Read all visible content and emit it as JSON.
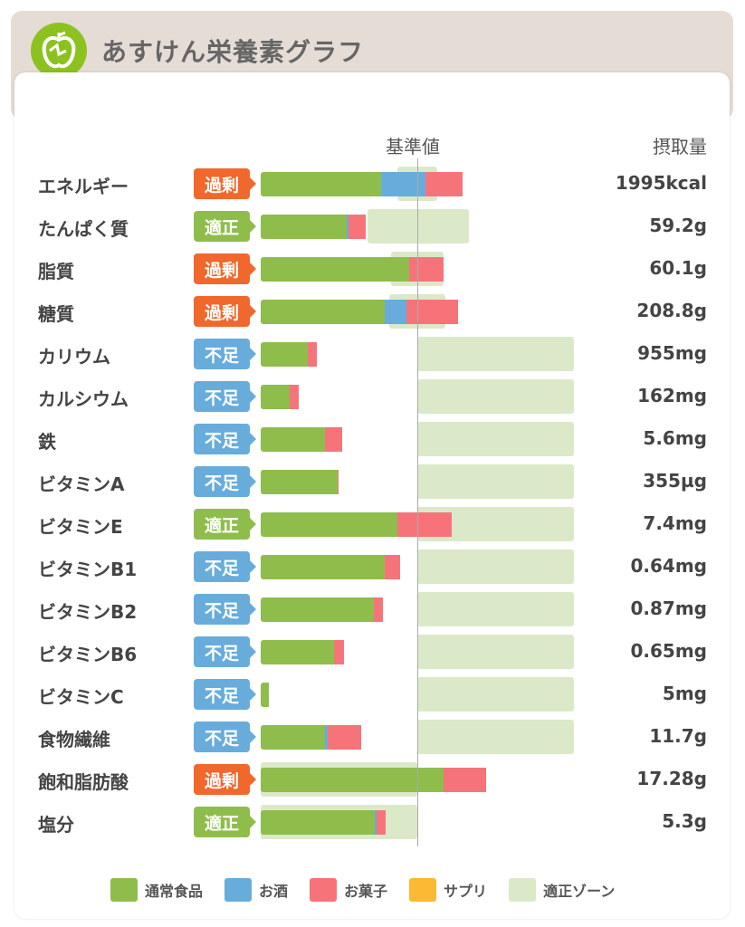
{
  "header": {
    "title": "あすけん栄養素グラフ"
  },
  "columns": {
    "reference": "基準値",
    "intake": "摂取量"
  },
  "colors": {
    "food": "#8fbd4c",
    "alcohol": "#68acdc",
    "sweets": "#f7737a",
    "supplement": "#fbb934",
    "zone": "#dbe9c9",
    "excess": "#f0682c",
    "ok": "#8fbd4c",
    "short": "#68acdc"
  },
  "legend": [
    "通常食品",
    "お酒",
    "お菓子",
    "サプリ",
    "適正ゾーン"
  ],
  "chart_data": {
    "type": "bar",
    "unit": "percent of reference",
    "rows": [
      {
        "name": "エネルギー",
        "status": "過剰",
        "kind": "excess",
        "value": "1995kcal",
        "food": 77,
        "alcohol": 28,
        "sweets": 24,
        "zone": [
          87,
          113
        ]
      },
      {
        "name": "たんぱく質",
        "status": "適正",
        "kind": "ok",
        "value": "59.2g",
        "food": 55,
        "alcohol": 1,
        "sweets": 11,
        "zone": [
          68,
          133
        ]
      },
      {
        "name": "脂質",
        "status": "過剰",
        "kind": "excess",
        "value": "60.1g",
        "food": 95,
        "alcohol": 0,
        "sweets": 22,
        "zone": [
          83,
          117
        ]
      },
      {
        "name": "糖質",
        "status": "過剰",
        "kind": "excess",
        "value": "208.8g",
        "food": 79,
        "alcohol": 14,
        "sweets": 33,
        "zone": [
          82,
          118
        ]
      },
      {
        "name": "カリウム",
        "status": "不足",
        "kind": "short",
        "value": "955mg",
        "food": 30,
        "alcohol": 0,
        "sweets": 6,
        "zone": [
          100,
          200
        ]
      },
      {
        "name": "カルシウム",
        "status": "不足",
        "kind": "short",
        "value": "162mg",
        "food": 18.5,
        "alcohol": 0,
        "sweets": 6,
        "zone": [
          100,
          200
        ]
      },
      {
        "name": "鉄",
        "status": "不足",
        "kind": "short",
        "value": "5.6mg",
        "food": 41,
        "alcohol": 0,
        "sweets": 11,
        "zone": [
          100,
          200
        ]
      },
      {
        "name": "ビタミンA",
        "status": "不足",
        "kind": "short",
        "value": "355µg",
        "food": 49,
        "alcohol": 0,
        "sweets": 1,
        "zone": [
          100,
          200
        ]
      },
      {
        "name": "ビタミンE",
        "status": "適正",
        "kind": "ok",
        "value": "7.4mg",
        "food": 87,
        "alcohol": 0,
        "sweets": 35,
        "zone": [
          100,
          200
        ]
      },
      {
        "name": "ビタミンB1",
        "status": "不足",
        "kind": "short",
        "value": "0.64mg",
        "food": 79,
        "alcohol": 0,
        "sweets": 10,
        "zone": [
          100,
          200
        ]
      },
      {
        "name": "ビタミンB2",
        "status": "不足",
        "kind": "short",
        "value": "0.87mg",
        "food": 72,
        "alcohol": 0,
        "sweets": 6,
        "zone": [
          100,
          200
        ]
      },
      {
        "name": "ビタミンB6",
        "status": "不足",
        "kind": "short",
        "value": "0.65mg",
        "food": 47,
        "alcohol": 0,
        "sweets": 6,
        "zone": [
          100,
          200
        ]
      },
      {
        "name": "ビタミンC",
        "status": "不足",
        "kind": "short",
        "value": "5mg",
        "food": 5,
        "alcohol": 0,
        "sweets": 0,
        "zone": [
          100,
          200
        ]
      },
      {
        "name": "食物繊維",
        "status": "不足",
        "kind": "short",
        "value": "11.7g",
        "food": 41,
        "alcohol": 2,
        "sweets": 21,
        "zone": [
          100,
          200
        ]
      },
      {
        "name": "飽和脂肪酸",
        "status": "過剰",
        "kind": "excess",
        "value": "17.28g",
        "food": 117,
        "alcohol": 0,
        "sweets": 27,
        "zone": [
          0,
          100
        ]
      },
      {
        "name": "塩分",
        "status": "適正",
        "kind": "ok",
        "value": "5.3g",
        "food": 73,
        "alcohol": 1,
        "sweets": 6,
        "zone": [
          0,
          100
        ]
      }
    ]
  }
}
